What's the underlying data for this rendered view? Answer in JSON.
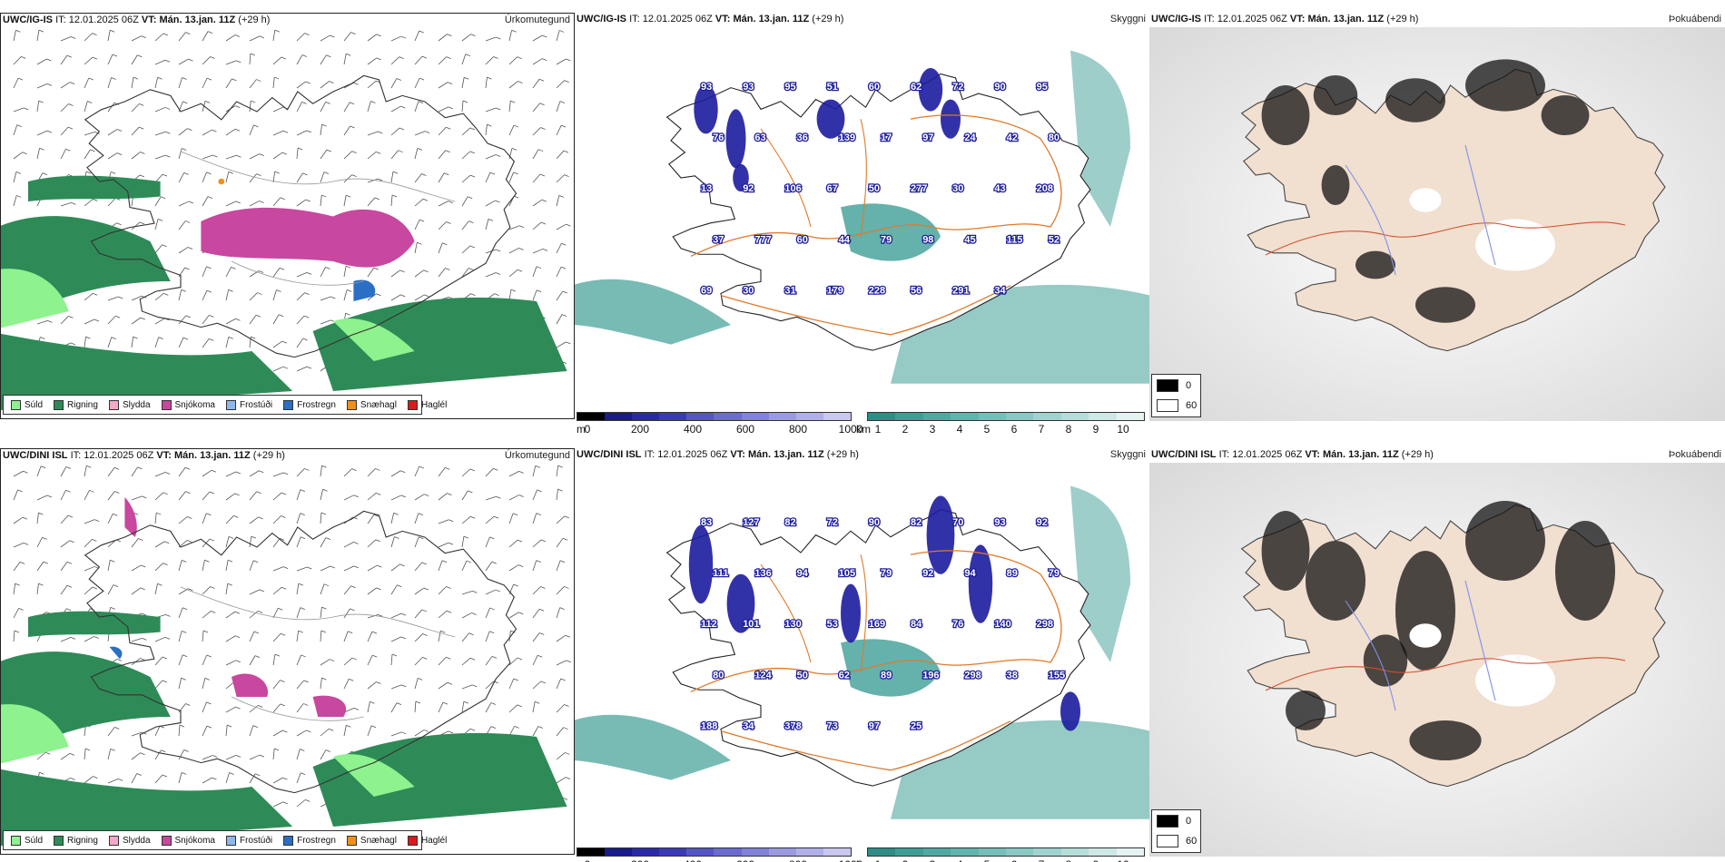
{
  "colors": {
    "sud": "#8ef28e",
    "rigning": "#2e8b57",
    "slydda": "#f4a7c9",
    "snjokoma": "#c8479f",
    "frostudi": "#8fb7ea",
    "frostregn": "#2a6fc4",
    "snaehagl": "#f0901a",
    "haglel": "#d81a1a",
    "visibility_dark": "#1c1c9e",
    "visibility_teal": "#3e9e96",
    "road": "#e07a2a",
    "land_beige": "#f1dfcf",
    "river": "#7f92e8"
  },
  "precip_legend": [
    {
      "label": "Súld",
      "color_key": "sud"
    },
    {
      "label": "Rigning",
      "color_key": "rigning"
    },
    {
      "label": "Slydda",
      "color_key": "slydda"
    },
    {
      "label": "Snjókoma",
      "color_key": "snjokoma"
    },
    {
      "label": "Frostúði",
      "color_key": "frostudi"
    },
    {
      "label": "Frostregn",
      "color_key": "frostregn"
    },
    {
      "label": "Snæhagl",
      "color_key": "snaehagl"
    },
    {
      "label": "Haglél",
      "color_key": "haglel"
    }
  ],
  "rows": [
    {
      "model": "UWC/IG-IS",
      "it_label": "IT:",
      "it_value": "12.01.2025 06Z",
      "vt_label": "VT:",
      "vt_value": "Mán. 13.jan. 11Z",
      "lead": "(+29 h)",
      "precip_title": "Úrkomutegund",
      "visibility_title": "Skyggni",
      "fog_title": "Þokuábendi",
      "visibility_numbers": [
        "93",
        "93",
        "95",
        "51",
        "60",
        "62",
        "72",
        "90",
        "95",
        "76",
        "63",
        "36",
        "139",
        "17",
        "97",
        "24",
        "42",
        "80",
        "13",
        "92",
        "106",
        "67",
        "50",
        "277",
        "30",
        "43",
        "208",
        "37",
        "777",
        "60",
        "44",
        "79",
        "98",
        "45",
        "115",
        "52",
        "69",
        "30",
        "31",
        "179",
        "228",
        "56",
        "291",
        "34"
      ],
      "fog_legend": [
        "0",
        "60"
      ]
    },
    {
      "model": "UWC/DINI ISL",
      "it_label": "IT:",
      "it_value": "12.01.2025 06Z",
      "vt_label": "VT:",
      "vt_value": "Mán. 13.jan. 11Z",
      "lead": "(+29 h)",
      "precip_title": "Úrkomutegund",
      "visibility_title": "Skyggni",
      "fog_title": "Þokuábendi",
      "visibility_numbers": [
        "83",
        "127",
        "82",
        "72",
        "90",
        "82",
        "70",
        "93",
        "92",
        "111",
        "136",
        "94",
        "105",
        "79",
        "92",
        "94",
        "89",
        "79",
        "112",
        "101",
        "130",
        "53",
        "169",
        "84",
        "76",
        "140",
        "298",
        "80",
        "124",
        "50",
        "62",
        "89",
        "196",
        "298",
        "38",
        "155",
        "188",
        "34",
        "378",
        "73",
        "97",
        "25"
      ],
      "fog_legend": [
        "0",
        "60"
      ]
    }
  ],
  "visibility_scale": {
    "m_unit": "m",
    "m_ticks": [
      "0",
      "200",
      "400",
      "600",
      "800",
      "1000"
    ],
    "km_unit": "km",
    "km_ticks": [
      "1",
      "2",
      "3",
      "4",
      "5",
      "6",
      "7",
      "8",
      "9",
      "10"
    ]
  }
}
